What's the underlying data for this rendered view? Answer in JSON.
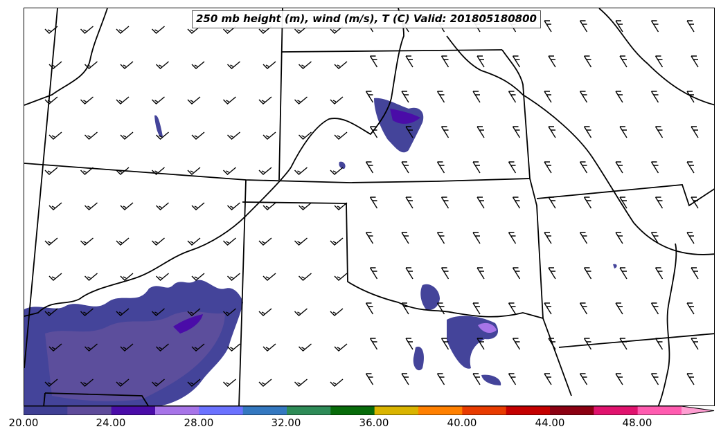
{
  "title": "250 mb height (m), wind (m/s), T (C) Valid: 201805180800",
  "colorbar": {
    "colors": [
      "#3f3f94",
      "#5e4b9a",
      "#4a0ca8",
      "#a774e8",
      "#6b72ff",
      "#3478c0",
      "#2e8b57",
      "#076b0a",
      "#d9b400",
      "#ff8000",
      "#e83b00",
      "#c40000",
      "#8b0012",
      "#e0136e",
      "#ff5cb0",
      "#ff9ed2"
    ],
    "tick_labels": [
      "20.00",
      "24.00",
      "28.00",
      "32.00",
      "36.00",
      "40.00",
      "44.00",
      "48.00"
    ],
    "extend": "max"
  },
  "wind_barbs": {
    "description_unit": "m/s",
    "style": "black barbs, westerly/southwesterly flow"
  }
}
